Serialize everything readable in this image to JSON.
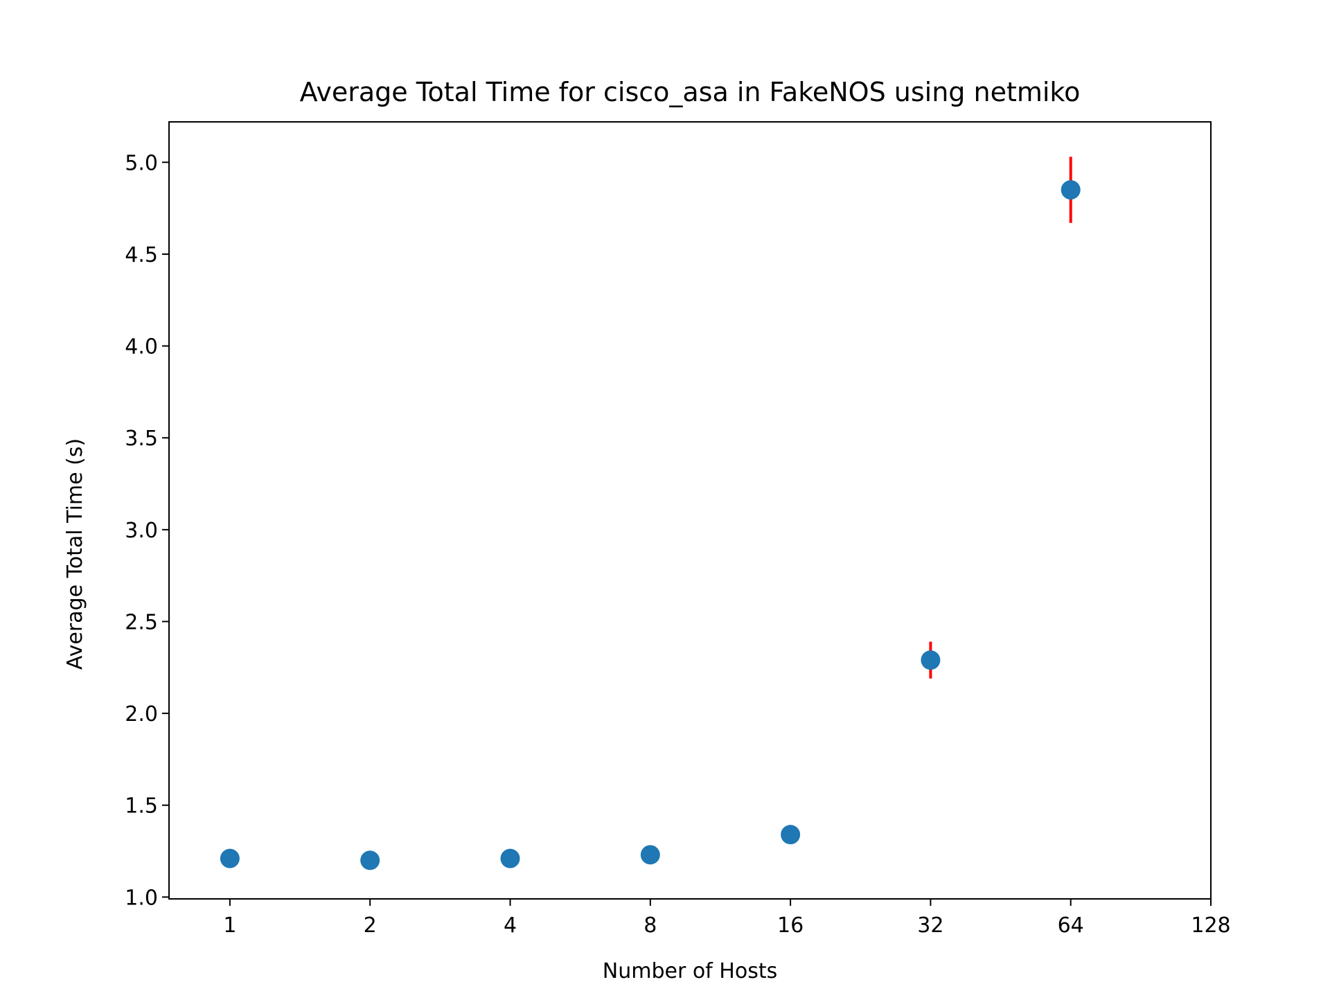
{
  "chart_data": {
    "type": "scatter",
    "title": "Average Total Time for cisco_asa in FakeNOS using netmiko",
    "xlabel": "Number of Hosts",
    "ylabel": "Average Total Time (s)",
    "x_scale": "log2",
    "x_ticks": [
      1,
      2,
      4,
      8,
      16,
      32,
      64,
      128
    ],
    "x_tick_labels": [
      "1",
      "2",
      "4",
      "8",
      "16",
      "32",
      "64",
      "128"
    ],
    "xlim": [
      0.74,
      128
    ],
    "y_ticks": [
      1.0,
      1.5,
      2.0,
      2.5,
      3.0,
      3.5,
      4.0,
      4.5,
      5.0
    ],
    "y_tick_labels": [
      "1.0",
      "1.5",
      "2.0",
      "2.5",
      "3.0",
      "3.5",
      "4.0",
      "4.5",
      "5.0"
    ],
    "ylim": [
      0.99,
      5.22
    ],
    "grid": false,
    "series": [
      {
        "x": [
          1,
          2,
          4,
          8,
          16,
          32,
          64
        ],
        "y": [
          1.21,
          1.2,
          1.21,
          1.23,
          1.34,
          2.29,
          4.85
        ],
        "yerr": [
          0.0,
          0.0,
          0.0,
          0.01,
          0.01,
          0.1,
          0.18
        ],
        "color": "#1f77b4",
        "error_color": "#ff0000"
      }
    ]
  }
}
